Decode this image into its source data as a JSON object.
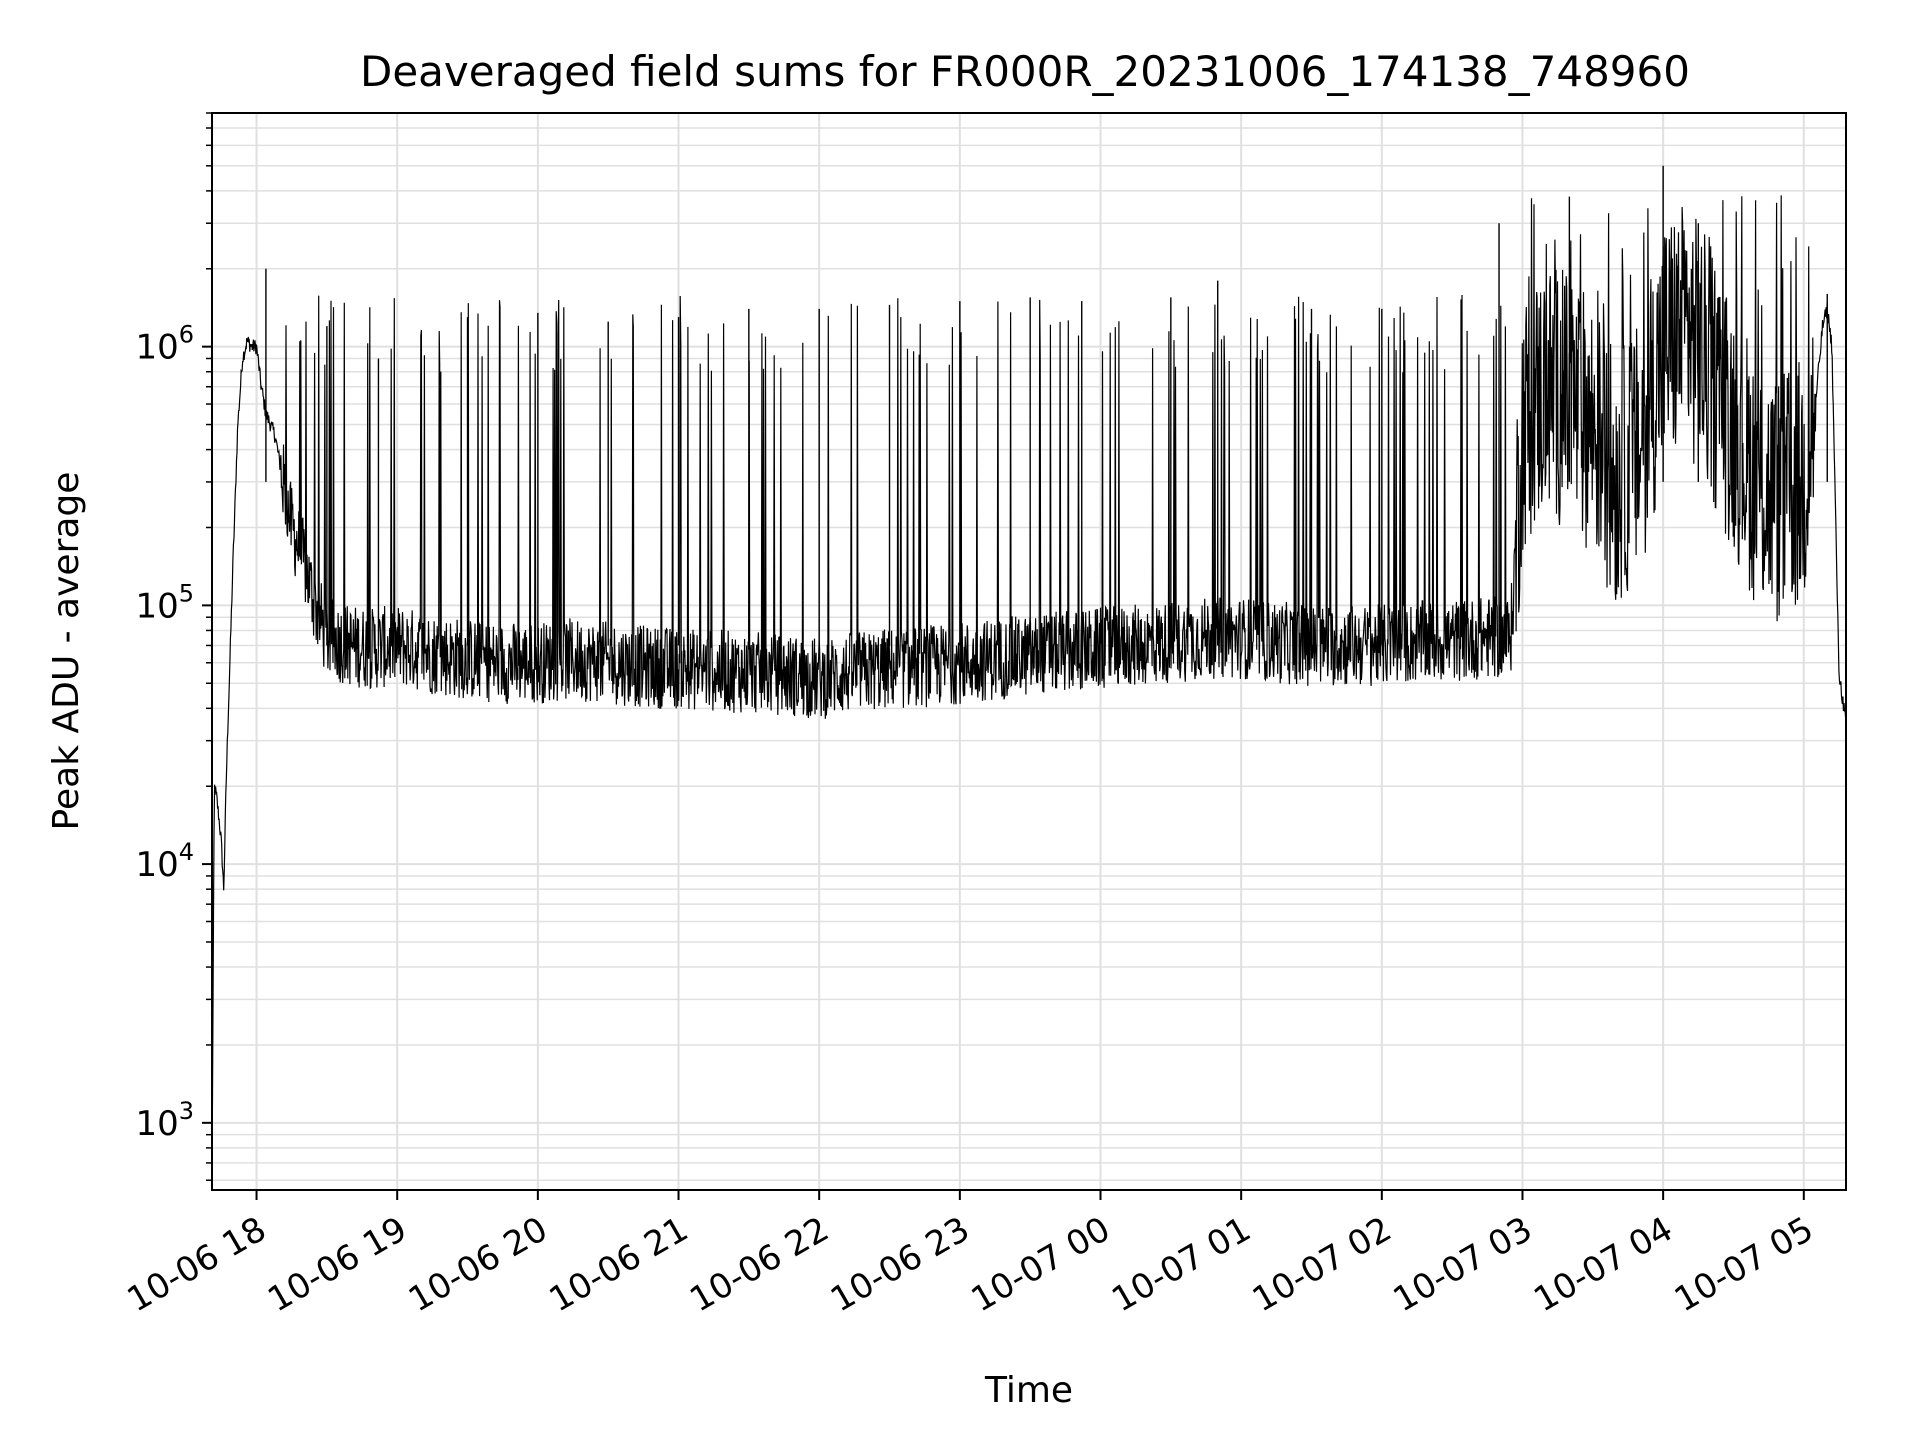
{
  "chart_data": {
    "type": "line",
    "title": "Deaveraged field sums for FR000R_20231006_174138_748960",
    "xlabel": "Time",
    "ylabel": "Peak ADU - average",
    "yscale": "log",
    "ylim": [
      550,
      8000000
    ],
    "xlim": [
      "2023-10-06 17:41",
      "2023-10-07 05:18"
    ],
    "grid": true,
    "colors": {
      "line": "#000000",
      "grid": "#e0e0e0",
      "axes": "#000000"
    },
    "x_ticks": [
      {
        "time": "2023-10-06 18:00",
        "label": "10-06 18"
      },
      {
        "time": "2023-10-06 19:00",
        "label": "10-06 19"
      },
      {
        "time": "2023-10-06 20:00",
        "label": "10-06 20"
      },
      {
        "time": "2023-10-06 21:00",
        "label": "10-06 21"
      },
      {
        "time": "2023-10-06 22:00",
        "label": "10-06 22"
      },
      {
        "time": "2023-10-06 23:00",
        "label": "10-06 23"
      },
      {
        "time": "2023-10-07 00:00",
        "label": "10-07 00"
      },
      {
        "time": "2023-10-07 01:00",
        "label": "10-07 01"
      },
      {
        "time": "2023-10-07 02:00",
        "label": "10-07 02"
      },
      {
        "time": "2023-10-07 03:00",
        "label": "10-07 03"
      },
      {
        "time": "2023-10-07 04:00",
        "label": "10-07 04"
      },
      {
        "time": "2023-10-07 05:00",
        "label": "10-07 05"
      }
    ],
    "y_ticks": [
      {
        "value": 1000,
        "base": "10",
        "exp": "3"
      },
      {
        "value": 10000,
        "base": "10",
        "exp": "4"
      },
      {
        "value": 100000,
        "base": "10",
        "exp": "5"
      },
      {
        "value": 1000000,
        "base": "10",
        "exp": "6"
      }
    ],
    "series": [
      {
        "x": [
          "2023-10-06 17:41",
          "2023-10-06 17:42",
          "2023-10-06 17:43",
          "2023-10-06 17:44",
          "2023-10-06 17:45",
          "2023-10-06 17:46",
          "2023-10-06 17:47",
          "2023-10-06 17:48",
          "2023-10-06 17:50",
          "2023-10-06 17:52",
          "2023-10-06 17:54",
          "2023-10-06 17:56",
          "2023-10-06 17:58",
          "2023-10-06 18:00",
          "2023-10-06 18:02",
          "2023-10-06 18:04",
          "2023-10-06 18:06",
          "2023-10-06 18:08",
          "2023-10-06 18:10",
          "2023-10-06 18:15",
          "2023-10-06 18:20",
          "2023-10-06 18:25",
          "2023-10-06 18:30",
          "2023-10-06 18:40",
          "2023-10-06 18:50",
          "2023-10-06 19:00",
          "2023-10-06 19:15",
          "2023-10-06 19:30",
          "2023-10-06 19:45",
          "2023-10-06 20:00",
          "2023-10-06 20:15",
          "2023-10-06 20:30",
          "2023-10-06 20:45",
          "2023-10-06 21:00",
          "2023-10-06 21:15",
          "2023-10-06 21:30",
          "2023-10-06 21:45",
          "2023-10-06 22:00",
          "2023-10-06 22:15",
          "2023-10-06 22:30",
          "2023-10-06 22:45",
          "2023-10-06 23:00",
          "2023-10-06 23:15",
          "2023-10-06 23:30",
          "2023-10-06 23:45",
          "2023-10-07 00:00",
          "2023-10-07 00:15",
          "2023-10-07 00:30",
          "2023-10-07 00:45",
          "2023-10-07 01:00",
          "2023-10-07 01:15",
          "2023-10-07 01:30",
          "2023-10-07 01:45",
          "2023-10-07 02:00",
          "2023-10-07 02:15",
          "2023-10-07 02:30",
          "2023-10-07 02:45",
          "2023-10-07 02:55",
          "2023-10-07 03:00",
          "2023-10-07 03:10",
          "2023-10-07 03:20",
          "2023-10-07 03:30",
          "2023-10-07 03:40",
          "2023-10-07 03:50",
          "2023-10-07 04:00",
          "2023-10-07 04:10",
          "2023-10-07 04:20",
          "2023-10-07 04:30",
          "2023-10-07 04:40",
          "2023-10-07 04:50",
          "2023-10-07 05:00",
          "2023-10-07 05:05",
          "2023-10-07 05:08",
          "2023-10-07 05:10",
          "2023-10-07 05:12",
          "2023-10-07 05:15",
          "2023-10-07 05:18"
        ],
        "y": [
          600,
          20000,
          18000,
          15000,
          12000,
          8000,
          20000,
          40000,
          150000,
          500000,
          900000,
          1050000,
          1000000,
          1000000,
          700000,
          550000,
          500000,
          450000,
          350000,
          200000,
          150000,
          100000,
          75000,
          70000,
          68000,
          70000,
          65000,
          62000,
          60000,
          60000,
          62000,
          60000,
          58000,
          57000,
          56000,
          55000,
          54000,
          52000,
          55000,
          57000,
          58000,
          60000,
          62000,
          64000,
          66000,
          68000,
          70000,
          72000,
          75000,
          75000,
          72000,
          70000,
          70000,
          70000,
          72000,
          73000,
          75000,
          75000,
          500000,
          700000,
          600000,
          500000,
          300000,
          400000,
          1000000,
          1200000,
          800000,
          500000,
          300000,
          250000,
          300000,
          600000,
          1200000,
          1400000,
          1000000,
          55000,
          35000
        ]
      }
    ],
    "spikes": [
      {
        "x": "2023-10-06 18:04",
        "y": 2000000
      },
      {
        "x": "2023-10-06 18:30",
        "y": 1200000
      },
      {
        "x": "2023-10-06 18:52",
        "y": 900000
      },
      {
        "x": "2023-10-06 19:30",
        "y": 1300000
      },
      {
        "x": "2023-10-06 20:00",
        "y": 1350000
      },
      {
        "x": "2023-10-06 20:30",
        "y": 1250000
      },
      {
        "x": "2023-10-06 21:00",
        "y": 1300000
      },
      {
        "x": "2023-10-06 21:30",
        "y": 1400000
      },
      {
        "x": "2023-10-06 22:00",
        "y": 1400000
      },
      {
        "x": "2023-10-06 22:30",
        "y": 1450000
      },
      {
        "x": "2023-10-06 23:00",
        "y": 1500000
      },
      {
        "x": "2023-10-06 23:30",
        "y": 1550000
      },
      {
        "x": "2023-10-06 23:52",
        "y": 1500000
      },
      {
        "x": "2023-10-07 00:30",
        "y": 1550000
      },
      {
        "x": "2023-10-07 00:50",
        "y": 1800000
      },
      {
        "x": "2023-10-07 01:30",
        "y": 1400000
      },
      {
        "x": "2023-10-07 02:00",
        "y": 1400000
      },
      {
        "x": "2023-10-07 02:50",
        "y": 3000000
      },
      {
        "x": "2023-10-07 03:20",
        "y": 3800000
      },
      {
        "x": "2023-10-07 04:00",
        "y": 5000000
      },
      {
        "x": "2023-10-07 04:15",
        "y": 3000000
      },
      {
        "x": "2023-10-07 05:10",
        "y": 1600000
      }
    ]
  }
}
